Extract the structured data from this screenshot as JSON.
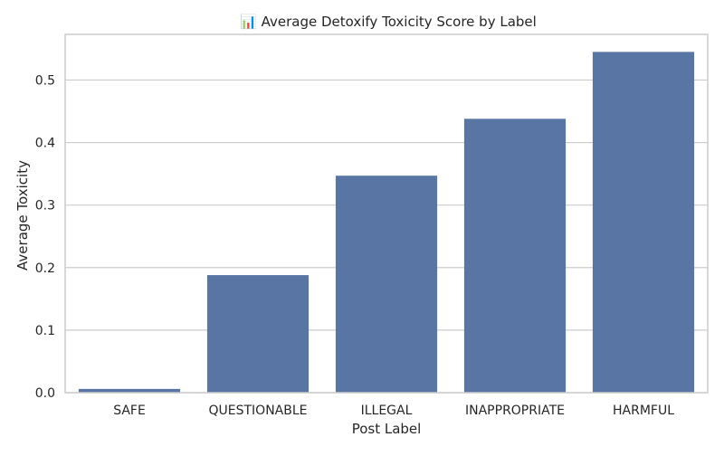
{
  "chart_data": {
    "type": "bar",
    "title": "📊 Average Detoxify Toxicity Score by Label",
    "xlabel": "Post Label",
    "ylabel": "Average Toxicity",
    "categories": [
      "SAFE",
      "QUESTIONABLE",
      "ILLEGAL",
      "INAPPROPRIATE",
      "HARMFUL"
    ],
    "values": [
      0.006,
      0.188,
      0.347,
      0.438,
      0.545
    ],
    "yticks": [
      "0.0",
      "0.1",
      "0.2",
      "0.3",
      "0.4",
      "0.5"
    ],
    "ylim": [
      0,
      0.573
    ],
    "grid": "horizontal",
    "bar_color": "#5975a4",
    "grid_color": "#cccccc",
    "spine_color": "#cccccc"
  }
}
